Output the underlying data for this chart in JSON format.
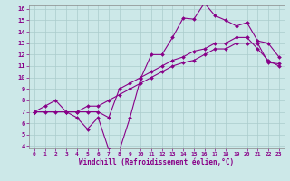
{
  "background_color": "#cce8e8",
  "grid_color": "#aacccc",
  "line_color": "#880088",
  "xlabel": "Windchill (Refroidissement éolien,°C)",
  "xlim": [
    0,
    23
  ],
  "ylim": [
    4,
    16
  ],
  "xticks": [
    0,
    1,
    2,
    3,
    4,
    5,
    6,
    7,
    8,
    9,
    10,
    11,
    12,
    13,
    14,
    15,
    16,
    17,
    18,
    19,
    20,
    21,
    22,
    23
  ],
  "yticks": [
    4,
    5,
    6,
    7,
    8,
    9,
    10,
    11,
    12,
    13,
    14,
    15,
    16
  ],
  "line1_x": [
    0,
    1,
    2,
    3,
    4,
    5,
    6,
    7,
    8,
    9,
    10,
    11,
    12,
    13,
    14,
    15,
    16,
    17,
    18,
    19,
    20,
    21,
    22,
    23
  ],
  "line1_y": [
    7.0,
    7.0,
    7.0,
    7.0,
    7.0,
    7.5,
    7.5,
    8.0,
    8.5,
    9.0,
    9.5,
    10.0,
    10.5,
    11.0,
    11.3,
    11.5,
    12.0,
    12.5,
    12.5,
    13.0,
    13.0,
    13.0,
    11.3,
    11.2
  ],
  "line2_x": [
    0,
    1,
    2,
    3,
    4,
    5,
    6,
    7,
    8,
    9,
    10,
    11,
    12,
    13,
    14,
    15,
    16,
    17,
    18,
    19,
    20,
    21,
    22,
    23
  ],
  "line2_y": [
    7.0,
    7.5,
    8.0,
    7.0,
    7.0,
    7.0,
    7.0,
    6.5,
    9.0,
    9.5,
    10.0,
    10.5,
    11.0,
    11.5,
    11.8,
    12.3,
    12.5,
    13.0,
    13.0,
    13.5,
    13.5,
    12.5,
    11.5,
    11.0
  ],
  "line3_x": [
    0,
    3,
    4,
    5,
    6,
    7,
    8,
    9,
    10,
    11,
    12,
    13,
    14,
    15,
    16,
    17,
    18,
    19,
    20,
    21,
    22,
    23
  ],
  "line3_y": [
    7.0,
    7.0,
    6.5,
    5.5,
    6.5,
    3.7,
    3.6,
    6.5,
    9.9,
    12.0,
    12.0,
    13.5,
    15.2,
    15.1,
    16.5,
    15.4,
    15.0,
    14.5,
    14.8,
    13.2,
    13.0,
    11.8
  ]
}
